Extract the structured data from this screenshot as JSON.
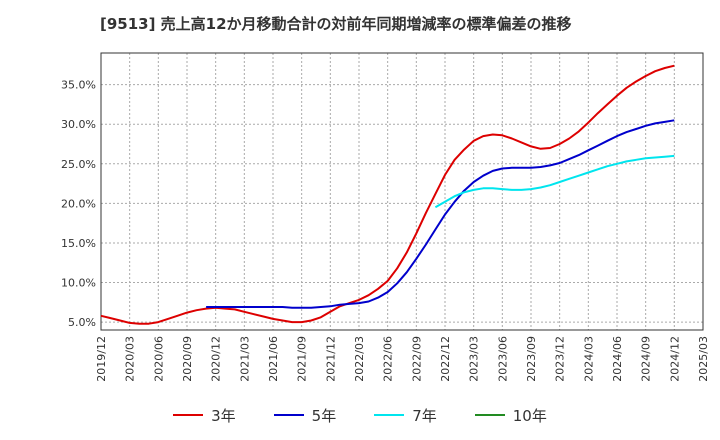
{
  "chart_data": {
    "type": "line",
    "title": "[9513]  売上高12か月移動合計の対前年同期増減率の標準偏差の推移",
    "xlabel": "",
    "ylabel": "",
    "x_ticks": [
      "2019/12",
      "2020/03",
      "2020/06",
      "2020/09",
      "2020/12",
      "2021/03",
      "2021/06",
      "2021/09",
      "2021/12",
      "2022/03",
      "2022/06",
      "2022/09",
      "2022/12",
      "2023/03",
      "2023/06",
      "2023/09",
      "2023/12",
      "2024/03",
      "2024/06",
      "2024/09",
      "2024/12",
      "2025/03"
    ],
    "y_ticks": [
      "5.0%",
      "10.0%",
      "15.0%",
      "20.0%",
      "25.0%",
      "30.0%",
      "35.0%"
    ],
    "y_tick_values": [
      5,
      10,
      15,
      20,
      25,
      30,
      35
    ],
    "ylim": [
      4.0,
      39.0
    ],
    "xlim": [
      "2019/12",
      "2025/03"
    ],
    "grid": true,
    "legend_position": "bottom",
    "series": [
      {
        "name": "3年",
        "color": "#dd0000",
        "points": [
          [
            "2019/12",
            5.8
          ],
          [
            "2020/01",
            5.5
          ],
          [
            "2020/02",
            5.2
          ],
          [
            "2020/03",
            4.9
          ],
          [
            "2020/04",
            4.8
          ],
          [
            "2020/05",
            4.8
          ],
          [
            "2020/06",
            5.0
          ],
          [
            "2020/07",
            5.4
          ],
          [
            "2020/08",
            5.8
          ],
          [
            "2020/09",
            6.2
          ],
          [
            "2020/10",
            6.5
          ],
          [
            "2020/11",
            6.7
          ],
          [
            "2020/12",
            6.8
          ],
          [
            "2021/01",
            6.7
          ],
          [
            "2021/02",
            6.6
          ],
          [
            "2021/03",
            6.3
          ],
          [
            "2021/04",
            6.0
          ],
          [
            "2021/05",
            5.7
          ],
          [
            "2021/06",
            5.4
          ],
          [
            "2021/07",
            5.2
          ],
          [
            "2021/08",
            5.0
          ],
          [
            "2021/09",
            5.0
          ],
          [
            "2021/10",
            5.2
          ],
          [
            "2021/11",
            5.6
          ],
          [
            "2021/12",
            6.3
          ],
          [
            "2021/12",
            6.3
          ],
          [
            "2022/01",
            7.0
          ],
          [
            "2022/02",
            7.4
          ],
          [
            "2022/03",
            7.8
          ],
          [
            "2022/04",
            8.4
          ],
          [
            "2022/05",
            9.2
          ],
          [
            "2022/06",
            10.2
          ],
          [
            "2022/07",
            11.8
          ],
          [
            "2022/08",
            13.8
          ],
          [
            "2022/09",
            16.2
          ],
          [
            "2022/10",
            18.8
          ],
          [
            "2022/11",
            21.2
          ],
          [
            "2022/12",
            23.6
          ],
          [
            "2023/01",
            25.5
          ],
          [
            "2023/02",
            26.8
          ],
          [
            "2023/03",
            27.9
          ],
          [
            "2023/04",
            28.5
          ],
          [
            "2023/05",
            28.7
          ],
          [
            "2023/06",
            28.6
          ],
          [
            "2023/07",
            28.2
          ],
          [
            "2023/08",
            27.7
          ],
          [
            "2023/09",
            27.2
          ],
          [
            "2023/10",
            26.9
          ],
          [
            "2023/11",
            27.0
          ],
          [
            "2023/12",
            27.5
          ],
          [
            "2024/01",
            28.2
          ],
          [
            "2024/02",
            29.1
          ],
          [
            "2024/03",
            30.2
          ],
          [
            "2024/04",
            31.4
          ],
          [
            "2024/05",
            32.5
          ],
          [
            "2024/06",
            33.6
          ],
          [
            "2024/07",
            34.6
          ],
          [
            "2024/08",
            35.4
          ],
          [
            "2024/09",
            36.1
          ],
          [
            "2024/10",
            36.7
          ],
          [
            "2024/11",
            37.1
          ],
          [
            "2024/12",
            37.4
          ]
        ]
      },
      {
        "name": "5年",
        "color": "#0000cc",
        "points": [
          [
            "2020/11",
            6.9
          ],
          [
            "2020/12",
            6.9
          ],
          [
            "2021/01",
            6.9
          ],
          [
            "2021/02",
            6.9
          ],
          [
            "2021/03",
            6.9
          ],
          [
            "2021/04",
            6.9
          ],
          [
            "2021/05",
            6.9
          ],
          [
            "2021/06",
            6.9
          ],
          [
            "2021/07",
            6.9
          ],
          [
            "2021/08",
            6.8
          ],
          [
            "2021/09",
            6.8
          ],
          [
            "2021/10",
            6.8
          ],
          [
            "2021/11",
            6.9
          ],
          [
            "2021/12",
            7.0
          ],
          [
            "2022/01",
            7.2
          ],
          [
            "2022/02",
            7.3
          ],
          [
            "2022/03",
            7.4
          ],
          [
            "2022/04",
            7.6
          ],
          [
            "2022/05",
            8.1
          ],
          [
            "2022/06",
            8.8
          ],
          [
            "2022/07",
            9.9
          ],
          [
            "2022/08",
            11.3
          ],
          [
            "2022/09",
            13.0
          ],
          [
            "2022/10",
            14.8
          ],
          [
            "2022/11",
            16.7
          ],
          [
            "2022/12",
            18.6
          ],
          [
            "2023/01",
            20.2
          ],
          [
            "2023/02",
            21.6
          ],
          [
            "2023/03",
            22.7
          ],
          [
            "2023/04",
            23.5
          ],
          [
            "2023/05",
            24.1
          ],
          [
            "2023/06",
            24.4
          ],
          [
            "2023/07",
            24.5
          ],
          [
            "2023/08",
            24.5
          ],
          [
            "2023/09",
            24.5
          ],
          [
            "2023/10",
            24.6
          ],
          [
            "2023/11",
            24.8
          ],
          [
            "2023/12",
            25.1
          ],
          [
            "2024/01",
            25.6
          ],
          [
            "2024/02",
            26.1
          ],
          [
            "2024/03",
            26.7
          ],
          [
            "2024/04",
            27.3
          ],
          [
            "2024/05",
            27.9
          ],
          [
            "2024/06",
            28.5
          ],
          [
            "2024/07",
            29.0
          ],
          [
            "2024/08",
            29.4
          ],
          [
            "2024/09",
            29.8
          ],
          [
            "2024/10",
            30.1
          ],
          [
            "2024/11",
            30.3
          ],
          [
            "2024/12",
            30.5
          ]
        ]
      },
      {
        "name": "7年",
        "color": "#00e5ee",
        "points": [
          [
            "2022/11",
            19.5
          ],
          [
            "2022/12",
            20.2
          ],
          [
            "2023/01",
            20.9
          ],
          [
            "2023/02",
            21.4
          ],
          [
            "2023/03",
            21.7
          ],
          [
            "2023/04",
            21.9
          ],
          [
            "2023/05",
            21.9
          ],
          [
            "2023/06",
            21.8
          ],
          [
            "2023/07",
            21.7
          ],
          [
            "2023/08",
            21.7
          ],
          [
            "2023/09",
            21.8
          ],
          [
            "2023/10",
            22.0
          ],
          [
            "2023/11",
            22.3
          ],
          [
            "2023/12",
            22.7
          ],
          [
            "2024/01",
            23.1
          ],
          [
            "2024/02",
            23.5
          ],
          [
            "2024/03",
            23.9
          ],
          [
            "2024/04",
            24.3
          ],
          [
            "2024/05",
            24.7
          ],
          [
            "2024/06",
            25.0
          ],
          [
            "2024/07",
            25.3
          ],
          [
            "2024/08",
            25.5
          ],
          [
            "2024/09",
            25.7
          ],
          [
            "2024/10",
            25.8
          ],
          [
            "2024/11",
            25.9
          ],
          [
            "2024/12",
            26.0
          ]
        ]
      },
      {
        "name": "10年",
        "color": "#228b22",
        "points": []
      }
    ]
  }
}
